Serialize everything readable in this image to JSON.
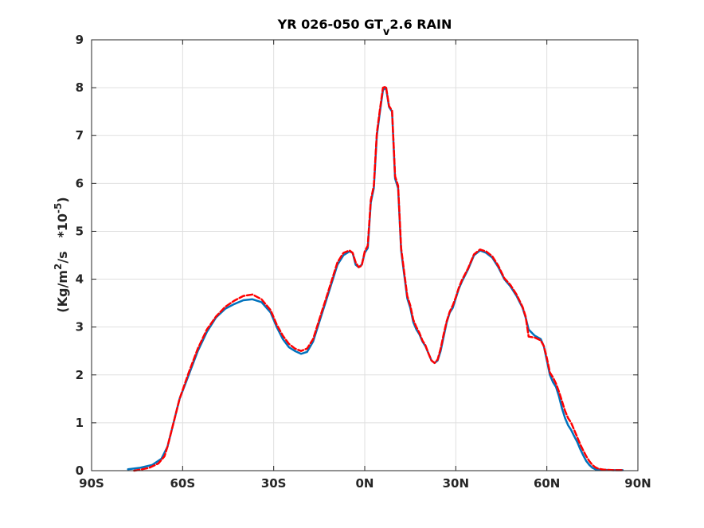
{
  "chart_data": {
    "type": "line",
    "title": {
      "prefix": "YR 026-050 GT",
      "subscript": "v",
      "suffix": "2.6 RAIN"
    },
    "ylabel": {
      "part1": "(Kg/m",
      "sup1": "2",
      "part2": "/s   *10",
      "sup2": "-5",
      "part3": ")"
    },
    "xlim": [
      -90,
      90
    ],
    "ylim": [
      0,
      9
    ],
    "x_ticks": [
      -90,
      -60,
      -30,
      0,
      30,
      60,
      90
    ],
    "x_tick_labels": [
      "90S",
      "60S",
      "30S",
      "0N",
      "30N",
      "60N",
      "90N"
    ],
    "y_ticks": [
      0,
      1,
      2,
      3,
      4,
      5,
      6,
      7,
      8,
      9
    ],
    "y_tick_labels": [
      "0",
      "1",
      "2",
      "3",
      "4",
      "5",
      "6",
      "7",
      "8",
      "9"
    ],
    "grid": true,
    "series": [
      {
        "color": "#0072BD",
        "style": "solid",
        "points": [
          [
            -78,
            0.03
          ],
          [
            -74,
            0.06
          ],
          [
            -70,
            0.12
          ],
          [
            -67,
            0.25
          ],
          [
            -65,
            0.5
          ],
          [
            -63,
            1.0
          ],
          [
            -61,
            1.5
          ],
          [
            -58,
            2.0
          ],
          [
            -55,
            2.5
          ],
          [
            -52,
            2.9
          ],
          [
            -49,
            3.2
          ],
          [
            -46,
            3.38
          ],
          [
            -43,
            3.48
          ],
          [
            -40,
            3.56
          ],
          [
            -37,
            3.58
          ],
          [
            -34,
            3.52
          ],
          [
            -31,
            3.3
          ],
          [
            -29,
            3.0
          ],
          [
            -27,
            2.75
          ],
          [
            -25,
            2.58
          ],
          [
            -23,
            2.5
          ],
          [
            -21,
            2.44
          ],
          [
            -19,
            2.48
          ],
          [
            -17,
            2.7
          ],
          [
            -15,
            3.1
          ],
          [
            -13,
            3.5
          ],
          [
            -11,
            3.9
          ],
          [
            -9,
            4.3
          ],
          [
            -7,
            4.5
          ],
          [
            -5,
            4.58
          ],
          [
            -4,
            4.55
          ],
          [
            -3,
            4.3
          ],
          [
            -2,
            4.25
          ],
          [
            -1,
            4.3
          ],
          [
            0,
            4.55
          ],
          [
            1,
            4.65
          ],
          [
            2,
            5.6
          ],
          [
            3,
            5.9
          ],
          [
            4,
            7.0
          ],
          [
            5,
            7.5
          ],
          [
            6,
            7.95
          ],
          [
            7,
            8.0
          ],
          [
            8,
            7.6
          ],
          [
            9,
            7.5
          ],
          [
            10,
            6.1
          ],
          [
            11,
            5.9
          ],
          [
            12,
            4.6
          ],
          [
            13,
            4.1
          ],
          [
            14,
            3.6
          ],
          [
            15,
            3.4
          ],
          [
            16,
            3.1
          ],
          [
            17,
            2.95
          ],
          [
            18,
            2.85
          ],
          [
            19,
            2.7
          ],
          [
            20,
            2.6
          ],
          [
            21,
            2.45
          ],
          [
            22,
            2.3
          ],
          [
            23,
            2.25
          ],
          [
            24,
            2.3
          ],
          [
            25,
            2.5
          ],
          [
            26,
            2.8
          ],
          [
            27,
            3.1
          ],
          [
            28,
            3.3
          ],
          [
            29,
            3.4
          ],
          [
            30,
            3.6
          ],
          [
            31,
            3.8
          ],
          [
            32,
            3.95
          ],
          [
            34,
            4.2
          ],
          [
            36,
            4.5
          ],
          [
            38,
            4.6
          ],
          [
            40,
            4.55
          ],
          [
            42,
            4.45
          ],
          [
            44,
            4.25
          ],
          [
            46,
            4.0
          ],
          [
            48,
            3.85
          ],
          [
            50,
            3.65
          ],
          [
            52,
            3.4
          ],
          [
            53,
            3.2
          ],
          [
            54,
            2.95
          ],
          [
            56,
            2.82
          ],
          [
            58,
            2.75
          ],
          [
            59,
            2.6
          ],
          [
            60,
            2.3
          ],
          [
            61,
            2.0
          ],
          [
            62,
            1.85
          ],
          [
            63,
            1.75
          ],
          [
            64,
            1.55
          ],
          [
            65,
            1.3
          ],
          [
            66,
            1.1
          ],
          [
            67,
            0.95
          ],
          [
            68,
            0.85
          ],
          [
            69,
            0.72
          ],
          [
            70,
            0.6
          ],
          [
            71,
            0.45
          ],
          [
            72,
            0.32
          ],
          [
            73,
            0.2
          ],
          [
            74,
            0.12
          ],
          [
            75,
            0.06
          ],
          [
            76,
            0.03
          ],
          [
            78,
            0.02
          ],
          [
            82,
            0.01
          ],
          [
            85,
            0.01
          ]
        ]
      },
      {
        "color": "#FF0000",
        "style": "dashed",
        "points": [
          [
            -76,
            0.0
          ],
          [
            -74,
            0.02
          ],
          [
            -71,
            0.06
          ],
          [
            -68,
            0.15
          ],
          [
            -66,
            0.3
          ],
          [
            -65,
            0.5
          ],
          [
            -63,
            1.0
          ],
          [
            -61,
            1.5
          ],
          [
            -58,
            2.05
          ],
          [
            -55,
            2.55
          ],
          [
            -52,
            2.95
          ],
          [
            -49,
            3.22
          ],
          [
            -46,
            3.42
          ],
          [
            -43,
            3.55
          ],
          [
            -40,
            3.65
          ],
          [
            -37,
            3.68
          ],
          [
            -34,
            3.58
          ],
          [
            -31,
            3.35
          ],
          [
            -29,
            3.05
          ],
          [
            -27,
            2.82
          ],
          [
            -25,
            2.65
          ],
          [
            -23,
            2.55
          ],
          [
            -21,
            2.5
          ],
          [
            -19,
            2.55
          ],
          [
            -17,
            2.75
          ],
          [
            -15,
            3.15
          ],
          [
            -13,
            3.55
          ],
          [
            -11,
            3.95
          ],
          [
            -9,
            4.35
          ],
          [
            -7,
            4.55
          ],
          [
            -5,
            4.6
          ],
          [
            -4,
            4.55
          ],
          [
            -3,
            4.35
          ],
          [
            -2,
            4.25
          ],
          [
            -1,
            4.28
          ],
          [
            0,
            4.58
          ],
          [
            1,
            4.7
          ],
          [
            2,
            5.65
          ],
          [
            3,
            5.95
          ],
          [
            4,
            7.05
          ],
          [
            5,
            7.55
          ],
          [
            6,
            8.0
          ],
          [
            7,
            8.02
          ],
          [
            8,
            7.62
          ],
          [
            9,
            7.52
          ],
          [
            10,
            6.15
          ],
          [
            11,
            5.95
          ],
          [
            12,
            4.65
          ],
          [
            13,
            4.15
          ],
          [
            14,
            3.65
          ],
          [
            15,
            3.45
          ],
          [
            16,
            3.15
          ],
          [
            17,
            3.0
          ],
          [
            18,
            2.88
          ],
          [
            19,
            2.72
          ],
          [
            20,
            2.62
          ],
          [
            21,
            2.45
          ],
          [
            22,
            2.3
          ],
          [
            23,
            2.25
          ],
          [
            24,
            2.32
          ],
          [
            25,
            2.55
          ],
          [
            26,
            2.85
          ],
          [
            27,
            3.12
          ],
          [
            28,
            3.32
          ],
          [
            29,
            3.45
          ],
          [
            30,
            3.62
          ],
          [
            31,
            3.82
          ],
          [
            32,
            3.98
          ],
          [
            34,
            4.22
          ],
          [
            36,
            4.52
          ],
          [
            38,
            4.62
          ],
          [
            40,
            4.58
          ],
          [
            42,
            4.48
          ],
          [
            44,
            4.28
          ],
          [
            46,
            4.02
          ],
          [
            48,
            3.88
          ],
          [
            50,
            3.68
          ],
          [
            52,
            3.42
          ],
          [
            53,
            3.22
          ],
          [
            54,
            2.8
          ],
          [
            56,
            2.78
          ],
          [
            58,
            2.72
          ],
          [
            59,
            2.6
          ],
          [
            60,
            2.35
          ],
          [
            61,
            2.05
          ],
          [
            62,
            1.95
          ],
          [
            63,
            1.82
          ],
          [
            64,
            1.65
          ],
          [
            65,
            1.45
          ],
          [
            66,
            1.25
          ],
          [
            67,
            1.1
          ],
          [
            68,
            1.0
          ],
          [
            69,
            0.85
          ],
          [
            70,
            0.7
          ],
          [
            71,
            0.55
          ],
          [
            72,
            0.42
          ],
          [
            73,
            0.3
          ],
          [
            74,
            0.2
          ],
          [
            75,
            0.12
          ],
          [
            76,
            0.07
          ],
          [
            77,
            0.04
          ],
          [
            79,
            0.02
          ],
          [
            82,
            0.01
          ],
          [
            85,
            0.01
          ]
        ]
      }
    ]
  }
}
